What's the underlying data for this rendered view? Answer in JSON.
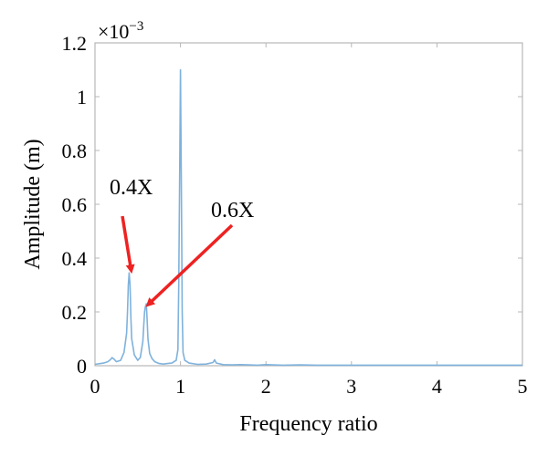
{
  "chart_data": {
    "type": "line",
    "title": "",
    "xlabel": "Frequency ratio",
    "ylabel": "Amplitude (m)",
    "xlim": [
      0,
      5
    ],
    "ylim": [
      0,
      1.2
    ],
    "y_scale_factor": "×10",
    "y_scale_exponent": "−3",
    "grid": false,
    "xticks": [
      "0",
      "1",
      "2",
      "3",
      "4",
      "5"
    ],
    "yticks": [
      "0",
      "0.2",
      "0.4",
      "0.6",
      "0.8",
      "1",
      "1.2"
    ],
    "series": [
      {
        "color": "#7fb2dc",
        "x": [
          0,
          0.1,
          0.15,
          0.18,
          0.2,
          0.22,
          0.25,
          0.3,
          0.34,
          0.37,
          0.38,
          0.39,
          0.4,
          0.41,
          0.42,
          0.43,
          0.46,
          0.5,
          0.53,
          0.56,
          0.57,
          0.58,
          0.59,
          0.6,
          0.61,
          0.62,
          0.64,
          0.67,
          0.7,
          0.75,
          0.8,
          0.85,
          0.9,
          0.95,
          0.97,
          0.98,
          0.99,
          1.0,
          1.01,
          1.02,
          1.03,
          1.05,
          1.1,
          1.2,
          1.3,
          1.38,
          1.4,
          1.42,
          1.5,
          1.6,
          1.7,
          1.8,
          1.9,
          2.0,
          2.2,
          2.4,
          2.6,
          2.8,
          3.0,
          3.5,
          4.0,
          4.5,
          5.0
        ],
        "y": [
          0.005,
          0.01,
          0.015,
          0.022,
          0.03,
          0.025,
          0.015,
          0.02,
          0.05,
          0.12,
          0.2,
          0.3,
          0.345,
          0.3,
          0.18,
          0.1,
          0.04,
          0.02,
          0.03,
          0.09,
          0.15,
          0.2,
          0.22,
          0.23,
          0.17,
          0.1,
          0.045,
          0.025,
          0.015,
          0.008,
          0.006,
          0.008,
          0.01,
          0.02,
          0.06,
          0.3,
          0.7,
          1.1,
          0.7,
          0.2,
          0.05,
          0.02,
          0.01,
          0.005,
          0.006,
          0.012,
          0.022,
          0.01,
          0.004,
          0.003,
          0.004,
          0.003,
          0.002,
          0.004,
          0.002,
          0.003,
          0.002,
          0.002,
          0.002,
          0.002,
          0.002,
          0.002,
          0.002
        ]
      }
    ],
    "annotations": [
      {
        "text": "0.4X",
        "x": 0.4,
        "y": 0.345,
        "arrow_color": "#ee2222"
      },
      {
        "text": "0.6X",
        "x": 0.6,
        "y": 0.23,
        "arrow_color": "#ee2222"
      }
    ]
  }
}
